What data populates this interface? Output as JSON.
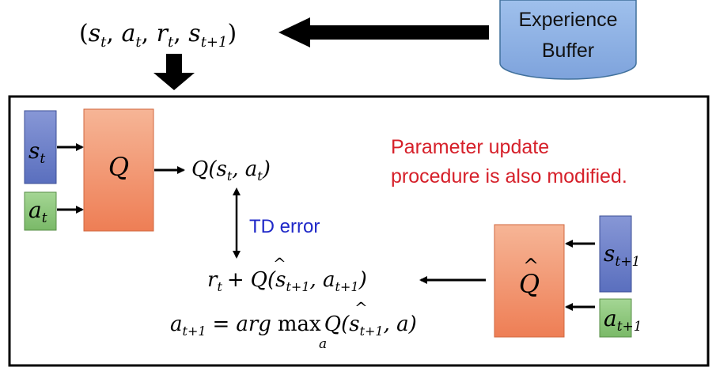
{
  "buffer": {
    "line1": "Experience",
    "line2": "Buffer"
  },
  "transition_tuple": {
    "s": "s",
    "s_sub": "t",
    "a": "a",
    "a_sub": "t",
    "r": "r",
    "r_sub": "t",
    "s_next": "s",
    "s_next_sub": "t+1"
  },
  "q_network": {
    "label": "Q",
    "input_state": "s",
    "input_state_sub": "t",
    "input_action": "a",
    "input_action_sub": "t",
    "output": "Q(s",
    "output_sub1": "t",
    "output_mid": ", a",
    "output_sub2": "t",
    "output_end": ")"
  },
  "target_network": {
    "label": "Q",
    "hat": "^",
    "input_state": "s",
    "input_state_sub": "t+1",
    "input_action": "a",
    "input_action_sub": "t+1"
  },
  "td_error_label": "TD error",
  "note": {
    "line1": "Parameter update",
    "line2": "procedure is also modified."
  },
  "target_expression": {
    "r": "r",
    "r_sub": "t",
    "plus": "+",
    "q": "Q",
    "q_hat": "^",
    "open": "(s",
    "s_sub": "t+1",
    "comma": ", a",
    "a_sub": "t+1",
    "close": ")"
  },
  "argmax_expression": {
    "a": "a",
    "a_sub": "t+1",
    "eq": "=",
    "arg": "arg",
    "max": "max",
    "max_sub": "a",
    "q": "Q",
    "q_hat": "^",
    "open": "(s",
    "s_sub": "t+1",
    "tail": ", a)"
  },
  "colors": {
    "q_box": "#f08a5f",
    "state_box": "#6b7fc8",
    "action_box": "#8fc77c",
    "buffer": "#8fb0e0",
    "note": "#d6202a",
    "td_label": "#1f28c8"
  }
}
